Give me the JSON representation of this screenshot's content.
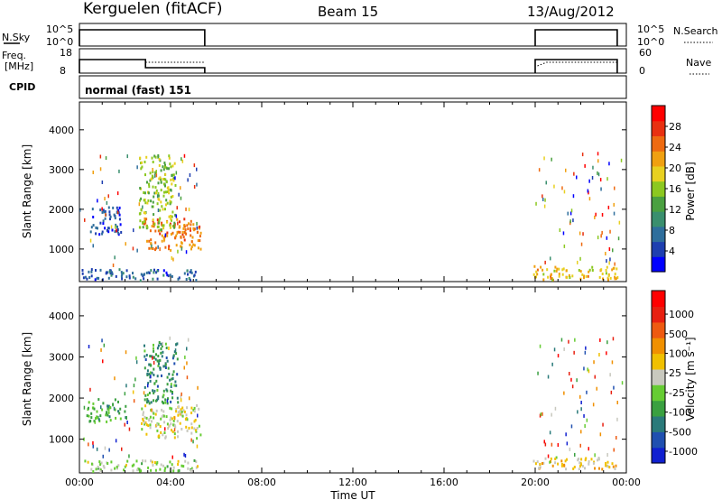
{
  "header": {
    "radar": "Kerguelen (fitACF)",
    "beam": "Beam 15",
    "date": "13/Aug/2012"
  },
  "panels": {
    "nsky": {
      "label": "N.Sky",
      "ticks": [
        "10^5",
        "10^0"
      ],
      "right_label": "N.Search",
      "right_ticks": [
        "10^5",
        "10^0"
      ]
    },
    "freq": {
      "label_lines": [
        "Freq.",
        "[MHz]"
      ],
      "ticks": [
        "18",
        "8"
      ],
      "right_label": "Nave",
      "right_ticks": [
        "60",
        "0"
      ]
    },
    "cpid": {
      "label": "CPID",
      "text": "normal (fast) 151"
    }
  },
  "chart_data": [
    {
      "type": "heatmap",
      "name": "Power",
      "xlabel": "",
      "ylabel": "Slant Range [km]",
      "ylim": [
        180,
        4700
      ],
      "xlim_hours": [
        0,
        24
      ],
      "yticks": [
        1000,
        2000,
        3000,
        4000
      ],
      "colorbar": {
        "label": "Power [dB]",
        "range": [
          0,
          32
        ],
        "ticks": [
          "4",
          "8",
          "12",
          "16",
          "20",
          "24",
          "28"
        ],
        "colors": [
          "#0000ff",
          "#1e3fb0",
          "#2e6e9c",
          "#3a8f6e",
          "#4aa040",
          "#8cc820",
          "#e8d020",
          "#f0a010",
          "#ee6a10",
          "#e83010",
          "#ff0000"
        ]
      },
      "data_periods": [
        {
          "start": "00:00",
          "end": "05:30"
        },
        {
          "start": "20:00",
          "end": "24:00"
        }
      ],
      "regions": [
        {
          "hours": [
            0.1,
            5.3
          ],
          "ranges_km": [
            240,
            520
          ],
          "value_db": 6
        },
        {
          "hours": [
            0.4,
            1.8
          ],
          "ranges_km": [
            1400,
            2100
          ],
          "value_db": 5
        },
        {
          "hours": [
            2.8,
            5.3
          ],
          "ranges_km": [
            1000,
            1800
          ],
          "value_db": 24
        },
        {
          "hours": [
            2.6,
            4.2
          ],
          "ranges_km": [
            1500,
            3400
          ],
          "value_db": 16
        },
        {
          "hours": [
            19.9,
            23.6
          ],
          "ranges_km": [
            250,
            600
          ],
          "value_db": 20
        }
      ]
    },
    {
      "type": "heatmap",
      "name": "Velocity",
      "xlabel": "Time UT",
      "ylabel": "Slant Range [km]",
      "ylim": [
        180,
        4700
      ],
      "xlim_hours": [
        0,
        24
      ],
      "yticks": [
        1000,
        2000,
        3000,
        4000
      ],
      "xticks": [
        "00:00",
        "04:00",
        "08:00",
        "12:00",
        "16:00",
        "20:00",
        "00:00"
      ],
      "colorbar": {
        "label": "Velocity [m s⁻¹]",
        "range": [
          -1300,
          1300
        ],
        "ticks": [
          "1000",
          "500",
          "100",
          "25",
          "-25",
          "-100",
          "-500",
          "-1000"
        ],
        "colors": [
          "#1020d0",
          "#2050b0",
          "#2a7a7a",
          "#3aa040",
          "#66cc33",
          "#c8c8be",
          "#f0c000",
          "#f09000",
          "#ee5a10",
          "#e82010",
          "#ff0000"
        ]
      },
      "data_periods": [
        {
          "start": "00:00",
          "end": "05:30"
        },
        {
          "start": "20:00",
          "end": "24:00"
        }
      ],
      "regions": [
        {
          "hours": [
            0.1,
            5.3
          ],
          "ranges_km": [
            240,
            520
          ],
          "value_ms": -120
        },
        {
          "hours": [
            0.3,
            2.0
          ],
          "ranges_km": [
            1450,
            2000
          ],
          "value_ms": -400
        },
        {
          "hours": [
            2.6,
            5.3
          ],
          "ranges_km": [
            1050,
            1850
          ],
          "value_ms": 0
        },
        {
          "hours": [
            2.8,
            4.3
          ],
          "ranges_km": [
            1900,
            3400
          ],
          "value_ms": -600
        },
        {
          "hours": [
            19.9,
            23.6
          ],
          "ranges_km": [
            300,
            600
          ],
          "value_ms": 150
        }
      ]
    }
  ]
}
